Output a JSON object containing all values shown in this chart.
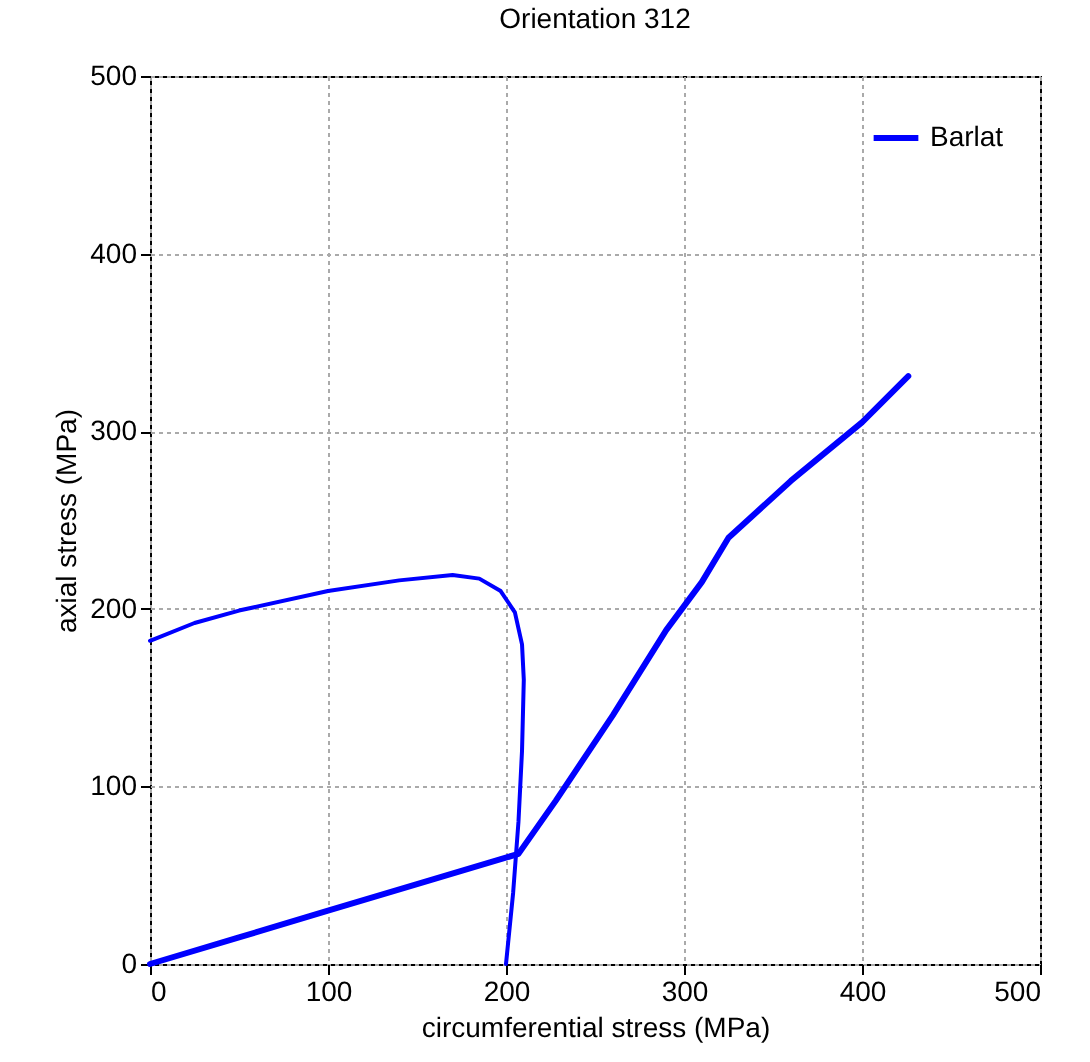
{
  "chart_data": {
    "type": "line",
    "title": "Orientation 312",
    "xlabel": "circumferential stress (MPa)",
    "ylabel": "axial stress (MPa)",
    "xlim": [
      0,
      500
    ],
    "ylim": [
      0,
      500
    ],
    "xticks": [
      0,
      100,
      200,
      300,
      400,
      500
    ],
    "yticks": [
      0,
      100,
      200,
      300,
      400,
      500
    ],
    "grid": true,
    "legend": "top right",
    "marker": "none",
    "line_style": "solid",
    "series": [
      {
        "name": "Barlat",
        "color": "#0000ff",
        "x": [
          0,
          50,
          100,
          150,
          207,
          228,
          260,
          290,
          310,
          325,
          360,
          400,
          426
        ],
        "values": [
          0,
          15,
          30,
          45,
          62,
          92,
          140,
          188,
          215,
          240,
          272,
          305,
          331
        ]
      },
      {
        "color": "#0000ff",
        "x": [
          0,
          25,
          50,
          100,
          140,
          170,
          185,
          197,
          205,
          209,
          210,
          209,
          207,
          204,
          200
        ],
        "values": [
          182,
          192,
          199,
          210,
          216,
          219,
          217,
          210,
          198,
          180,
          160,
          120,
          80,
          40,
          0
        ]
      }
    ]
  }
}
